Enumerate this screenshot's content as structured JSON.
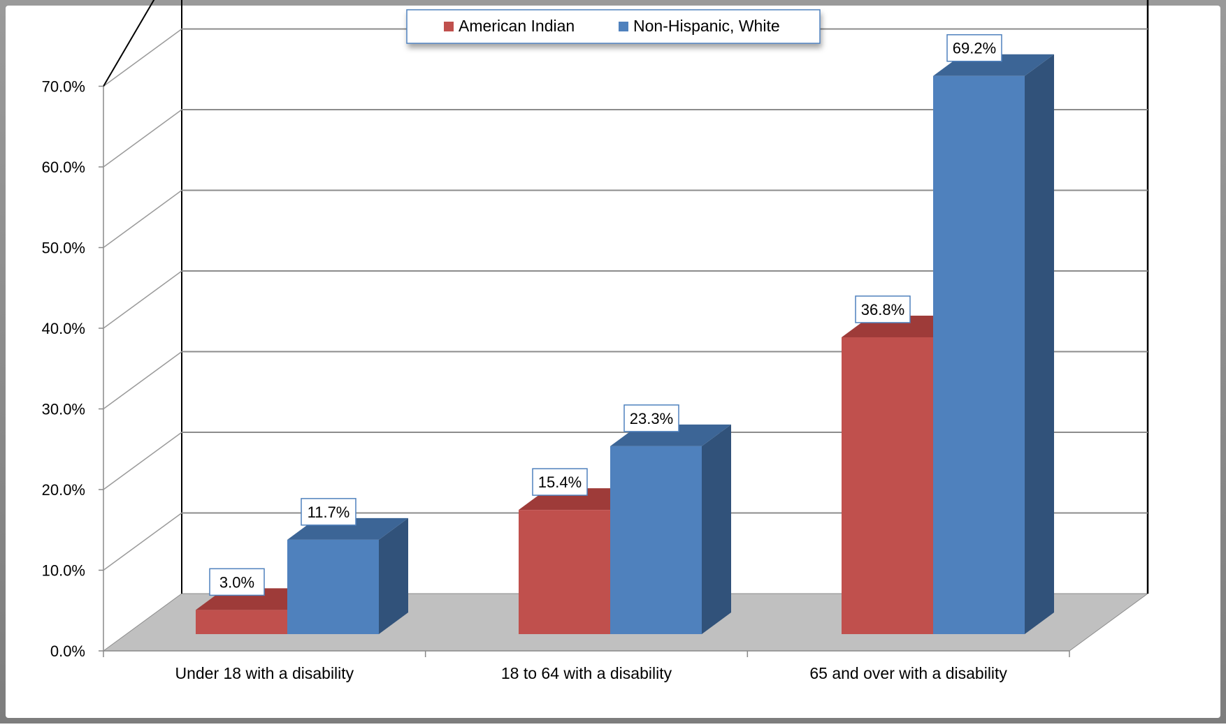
{
  "chart_data": {
    "type": "bar",
    "title": "",
    "xlabel": "",
    "ylabel": "",
    "categories": [
      "Under 18 with a disability",
      "18 to 64 with a disability",
      "65 and over with a disability"
    ],
    "series": [
      {
        "name": "American Indian",
        "values": [
          3.0,
          15.4,
          36.8
        ],
        "color": "#C0504D"
      },
      {
        "name": "Non-Hispanic, White",
        "values": [
          11.7,
          23.3,
          69.2
        ],
        "color": "#4F81BD"
      }
    ],
    "ylim": [
      0,
      70
    ],
    "yticks": [
      "0.0%",
      "10.0%",
      "20.0%",
      "30.0%",
      "40.0%",
      "50.0%",
      "60.0%",
      "70.0%"
    ],
    "data_labels": [
      [
        "3.0%",
        "15.4%",
        "36.8%"
      ],
      [
        "11.7%",
        "23.3%",
        "69.2%"
      ]
    ],
    "grid": true,
    "legend_position": "top",
    "three_d": true
  }
}
